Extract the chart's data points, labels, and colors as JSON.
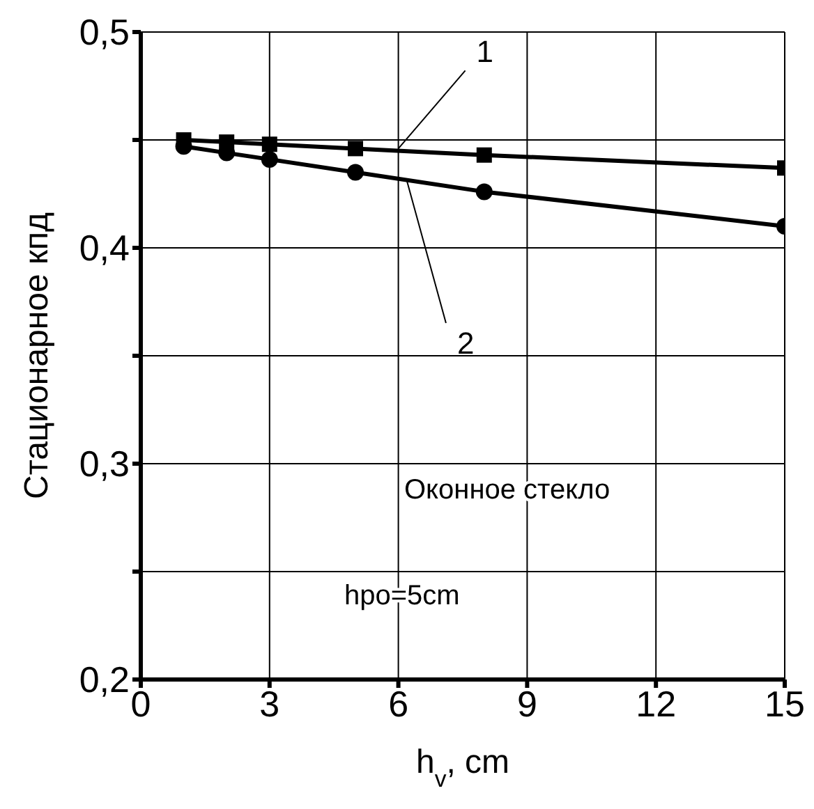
{
  "chart_data": {
    "type": "line",
    "xlabel": "h$_{v}$, cm",
    "ylabel": "Стационарное кпд",
    "x": [
      1,
      2,
      3,
      5,
      8,
      15
    ],
    "series": [
      {
        "color": "#000000",
        "marker": "square",
        "values": [
          0.45,
          0.449,
          0.448,
          0.446,
          0.443,
          0.437
        ]
      },
      {
        "color": "#000000",
        "marker": "circle",
        "values": [
          0.447,
          0.444,
          0.441,
          0.435,
          0.426,
          0.41
        ]
      }
    ],
    "xlim": [
      0,
      15
    ],
    "xticks": [
      0,
      3,
      6,
      9,
      12,
      15
    ],
    "ylim": [
      0.2,
      0.5
    ],
    "yticks": [
      {
        "value": 0.2,
        "label": "0,2"
      },
      {
        "value": 0.25,
        "label": null
      },
      {
        "value": 0.3,
        "label": "0,3"
      },
      {
        "value": 0.35,
        "label": null
      },
      {
        "value": 0.4,
        "label": "0,4"
      },
      {
        "value": 0.45,
        "label": null
      },
      {
        "value": 0.5,
        "label": "0,5"
      }
    ],
    "grid": true,
    "annotations": [
      {
        "text": "1",
        "x": 6,
        "y": 0.446
      },
      {
        "text": "2",
        "x": 6.2,
        "y": 0.431
      },
      "Оконное стекло",
      "hpo=5cm"
    ]
  }
}
